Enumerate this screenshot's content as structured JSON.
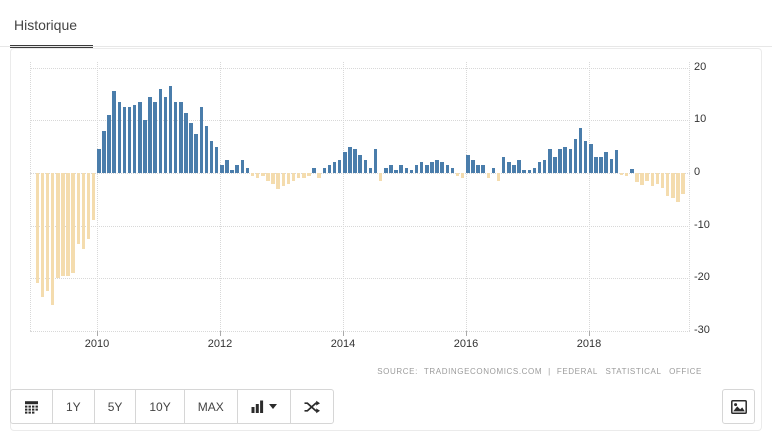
{
  "tab": {
    "label": "Historique"
  },
  "toolbar": {
    "ranges": [
      "1Y",
      "5Y",
      "10Y",
      "MAX"
    ],
    "icons": [
      "calendar-icon",
      "bar-chart-icon",
      "caret-down-icon",
      "shuffle-icon",
      "image-icon"
    ]
  },
  "source_line": {
    "prefix": "SOURCE:",
    "provider": "TRADINGECONOMICS.COM",
    "separator": "|",
    "source": "FEDERAL STATISTICAL OFFICE"
  },
  "colors": {
    "positive_bar": "#4a7dab",
    "negative_bar": "#f4dcae",
    "grid": "#d8d8d8",
    "tick": "#aaaaaa",
    "axis_text": "#333333",
    "muted_text": "#9b9b9b"
  },
  "chart_data": {
    "type": "bar",
    "title": "",
    "xlabel": "",
    "ylabel": "",
    "unit": "percent",
    "frequency": "monthly",
    "start_year": 2009,
    "start_month": 1,
    "ylim": [
      -30,
      20
    ],
    "grid": "dotted",
    "legend": "none",
    "y_ticks": [
      20,
      10,
      0,
      -10,
      -20,
      -30
    ],
    "x_tick_labels": [
      "2010",
      "2012",
      "2014",
      "2016",
      "2018"
    ],
    "values": [
      -21,
      -23.5,
      -22.5,
      -25,
      -20,
      -19.5,
      -19.5,
      -19,
      -13.5,
      -14.5,
      -12.5,
      -9,
      4.5,
      8,
      11,
      15.5,
      13.5,
      12.5,
      12.5,
      13,
      13.5,
      10,
      14.5,
      13.5,
      16,
      14.5,
      16.5,
      13.5,
      13.5,
      11.5,
      9.5,
      7.5,
      12.5,
      9,
      6,
      5,
      1.5,
      2.5,
      0.5,
      1.5,
      2.5,
      1,
      -0.5,
      -1,
      -0.5,
      -1.5,
      -2,
      -3,
      -2.5,
      -2,
      -1.5,
      -1,
      -1,
      -0.5,
      1,
      -1,
      1,
      1.5,
      2,
      2.5,
      4,
      5,
      4.5,
      3.5,
      2.5,
      1,
      4.5,
      -1.5,
      1,
      1.5,
      0.5,
      1.5,
      1,
      0.5,
      1.5,
      2,
      1.5,
      2,
      2.5,
      2,
      1.5,
      1,
      -0.5,
      -1,
      3.5,
      2.5,
      1.5,
      1.5,
      -1,
      1,
      -1.5,
      3,
      2,
      1.5,
      2.5,
      0.5,
      0.5,
      1,
      2,
      2.5,
      4.5,
      3,
      4.5,
      5,
      4.5,
      6.5,
      8.5,
      6,
      5.5,
      3,
      3,
      4,
      2.7,
      4.3,
      -0.4,
      -0.5,
      0.8,
      -1.8,
      -2.2,
      -1.5,
      -2.5,
      -2,
      -2.8,
      -4.3,
      -4.7,
      -5.5,
      -4
    ]
  }
}
